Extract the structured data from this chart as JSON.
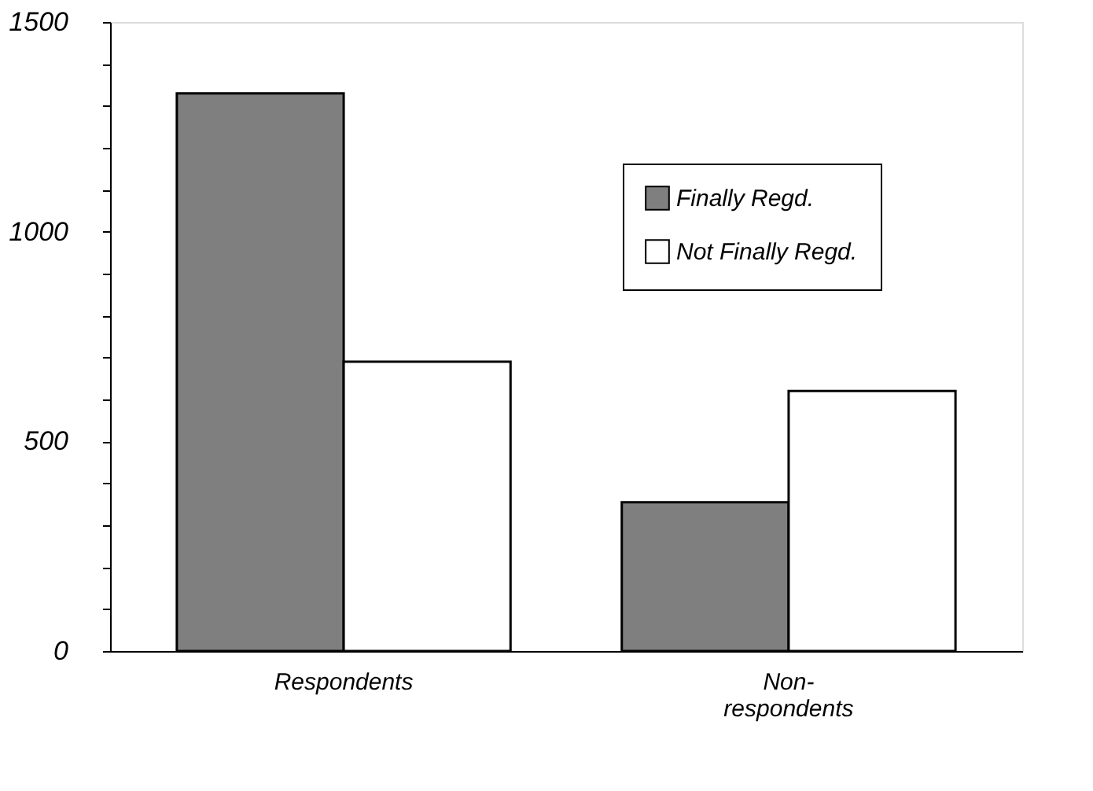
{
  "chart_data": {
    "type": "bar",
    "categories": [
      "Respondents",
      "Non-\nrespondents"
    ],
    "series": [
      {
        "name": "Finally Regd.",
        "color": "#7f7f7f",
        "values": [
          1330,
          355
        ]
      },
      {
        "name": "Not Finally Regd.",
        "color": "#ffffff",
        "values": [
          690,
          620
        ]
      }
    ],
    "ylim": [
      0,
      1500
    ],
    "yticks": [
      0,
      {
        "value": 100,
        "label": null
      },
      {
        "value": 200,
        "label": null
      },
      {
        "value": 300,
        "label": null
      },
      {
        "value": 400,
        "label": null
      },
      500,
      {
        "value": 600,
        "label": null
      },
      {
        "value": 700,
        "label": null
      },
      {
        "value": 800,
        "label": null
      },
      {
        "value": 900,
        "label": null
      },
      1000,
      {
        "value": 1100,
        "label": null
      },
      {
        "value": 1200,
        "label": null
      },
      {
        "value": 1300,
        "label": null
      },
      {
        "value": 1400,
        "label": null
      },
      1500
    ],
    "grid": false,
    "legend": "top right"
  }
}
